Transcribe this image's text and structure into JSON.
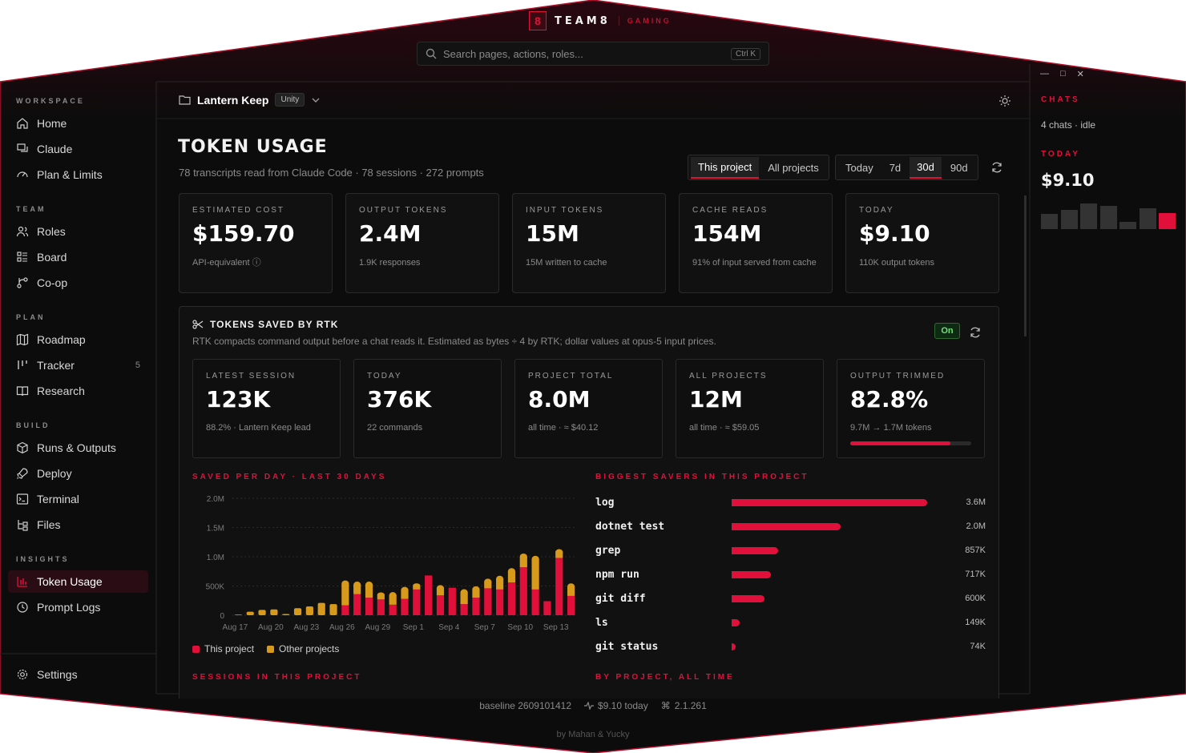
{
  "brand": {
    "badge": "8",
    "name": "TEAM8",
    "sub": "GAMING"
  },
  "search": {
    "placeholder": "Search pages, actions, roles...",
    "shortcut": "Ctrl K"
  },
  "sidebar": {
    "sections": [
      {
        "label": "WORKSPACE",
        "items": [
          {
            "label": "Home",
            "icon": "home-icon"
          },
          {
            "label": "Claude",
            "icon": "chat-icon"
          },
          {
            "label": "Plan & Limits",
            "icon": "gauge-icon"
          }
        ]
      },
      {
        "label": "TEAM",
        "items": [
          {
            "label": "Roles",
            "icon": "users-icon"
          },
          {
            "label": "Board",
            "icon": "board-icon"
          },
          {
            "label": "Co-op",
            "icon": "branch-icon"
          }
        ]
      },
      {
        "label": "PLAN",
        "items": [
          {
            "label": "Roadmap",
            "icon": "map-icon"
          },
          {
            "label": "Tracker",
            "icon": "tracker-icon",
            "count": "5"
          },
          {
            "label": "Research",
            "icon": "book-icon"
          }
        ]
      },
      {
        "label": "BUILD",
        "items": [
          {
            "label": "Runs & Outputs",
            "icon": "package-icon"
          },
          {
            "label": "Deploy",
            "icon": "rocket-icon"
          },
          {
            "label": "Terminal",
            "icon": "terminal-icon"
          },
          {
            "label": "Files",
            "icon": "files-icon"
          }
        ]
      },
      {
        "label": "INSIGHTS",
        "items": [
          {
            "label": "Token Usage",
            "icon": "bar-chart-icon",
            "active": true
          },
          {
            "label": "Prompt Logs",
            "icon": "logs-icon"
          }
        ]
      }
    ],
    "settings": "Settings"
  },
  "header": {
    "project": "Lantern Keep",
    "engine": "Unity"
  },
  "page": {
    "title": "TOKEN USAGE",
    "subtitle": "78 transcripts read from Claude Code · 78 sessions · 272 prompts",
    "scope_tabs": [
      "This project",
      "All projects"
    ],
    "scope_selected": "This project",
    "range_tabs": [
      "Today",
      "7d",
      "30d",
      "90d"
    ],
    "range_selected": "30d"
  },
  "stats": [
    {
      "label": "ESTIMATED COST",
      "value": "$159.70",
      "note": "API-equivalent ⓘ"
    },
    {
      "label": "OUTPUT TOKENS",
      "value": "2.4M",
      "note": "1.9K responses"
    },
    {
      "label": "INPUT TOKENS",
      "value": "15M",
      "note": "15M written to cache"
    },
    {
      "label": "CACHE READS",
      "value": "154M",
      "note": "91% of input served from cache"
    },
    {
      "label": "TODAY",
      "value": "$9.10",
      "note": "110K output tokens"
    }
  ],
  "rtk": {
    "title": "TOKENS SAVED BY RTK",
    "description": "RTK compacts command output before a chat reads it. Estimated as bytes ÷ 4 by RTK; dollar values at opus-5 input prices.",
    "toggle": "On",
    "cards": [
      {
        "label": "LATEST SESSION",
        "value": "123K",
        "note": "88.2% · Lantern Keep lead"
      },
      {
        "label": "TODAY",
        "value": "376K",
        "note": "22 commands"
      },
      {
        "label": "PROJECT TOTAL",
        "value": "8.0M",
        "note": "all time · ≈ $40.12"
      },
      {
        "label": "ALL PROJECTS",
        "value": "12M",
        "note": "all time · ≈ $59.05"
      },
      {
        "label": "OUTPUT TRIMMED",
        "value": "82.8%",
        "note": "9.7M → 1.7M tokens",
        "progress": 0.828
      }
    ]
  },
  "chart_data": {
    "type": "bar",
    "title": "SAVED PER DAY · LAST 30 DAYS",
    "stacked": true,
    "y_ticks": [
      "0",
      "500K",
      "1.0M",
      "1.5M",
      "2.0M"
    ],
    "ylim": [
      0,
      2000000
    ],
    "x_tick_labels": [
      "Aug 17",
      "Aug 20",
      "Aug 23",
      "Aug 26",
      "Aug 29",
      "Sep 1",
      "Sep 4",
      "Sep 7",
      "Sep 10",
      "Sep 13"
    ],
    "series": [
      {
        "name": "This project",
        "color": "#e0103a",
        "values": [
          0,
          0,
          0,
          0,
          0,
          0,
          0,
          0,
          0,
          170000,
          360000,
          300000,
          270000,
          180000,
          280000,
          440000,
          680000,
          340000,
          470000,
          190000,
          300000,
          460000,
          440000,
          560000,
          820000,
          440000,
          240000,
          980000,
          330000
        ]
      },
      {
        "name": "Other projects",
        "color": "#d89a1a",
        "values": [
          10000,
          60000,
          90000,
          100000,
          20000,
          120000,
          150000,
          210000,
          190000,
          370000,
          160000,
          220000,
          80000,
          160000,
          150000,
          70000,
          0,
          120000,
          0,
          200000,
          140000,
          110000,
          180000,
          190000,
          180000,
          520000,
          0,
          100000,
          160000
        ]
      }
    ],
    "legend": [
      "This project",
      "Other projects"
    ]
  },
  "savers": {
    "title": "BIGGEST SAVERS IN THIS PROJECT",
    "max": 3600000,
    "items": [
      {
        "name": "log",
        "value": 3600000,
        "label": "3.6M"
      },
      {
        "name": "dotnet test",
        "value": 2000000,
        "label": "2.0M"
      },
      {
        "name": "grep",
        "value": 857000,
        "label": "857K"
      },
      {
        "name": "npm run",
        "value": 717000,
        "label": "717K"
      },
      {
        "name": "git diff",
        "value": 600000,
        "label": "600K"
      },
      {
        "name": "ls",
        "value": 149000,
        "label": "149K"
      },
      {
        "name": "git status",
        "value": 74000,
        "label": "74K"
      }
    ]
  },
  "sections_below": {
    "sessions": "SESSIONS IN THIS PROJECT",
    "by_project": "BY PROJECT, ALL TIME"
  },
  "right_panel": {
    "chats_label": "CHATS",
    "chats_status": "4 chats · idle",
    "today_label": "TODAY",
    "today_value": "$9.10",
    "mini_bars": [
      0.55,
      0.7,
      0.95,
      0.85,
      0.25,
      0.75,
      0.6
    ],
    "window_controls": [
      "—",
      "□",
      "✕"
    ]
  },
  "status": {
    "baseline": "baseline 2609101412",
    "today": "$9.10 today",
    "version": "2.1.261"
  },
  "credit": "by Mahan & Yucky"
}
